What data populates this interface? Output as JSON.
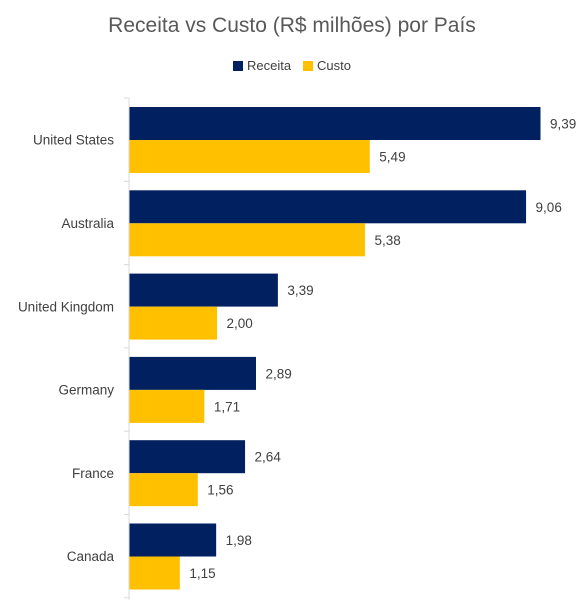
{
  "chart_data": {
    "type": "bar",
    "orientation": "horizontal",
    "title": "Receita vs Custo (R$ milhões) por País",
    "categories": [
      "United States",
      "Australia",
      "United Kingdom",
      "Germany",
      "France",
      "Canada"
    ],
    "series": [
      {
        "name": "Receita",
        "color": "#002060",
        "values": [
          9.39,
          9.06,
          3.39,
          2.89,
          2.64,
          1.98
        ],
        "labels": [
          "9,39",
          "9,06",
          "3,39",
          "2,89",
          "2,64",
          "1,98"
        ]
      },
      {
        "name": "Custo",
        "color": "#FFC000",
        "values": [
          5.49,
          5.38,
          2.0,
          1.71,
          1.56,
          1.15
        ],
        "labels": [
          "5,49",
          "5,38",
          "2,00",
          "1,71",
          "1,56",
          "1,15"
        ]
      }
    ],
    "xlim": [
      0,
      10
    ],
    "legend_position": "top",
    "grid": false
  }
}
